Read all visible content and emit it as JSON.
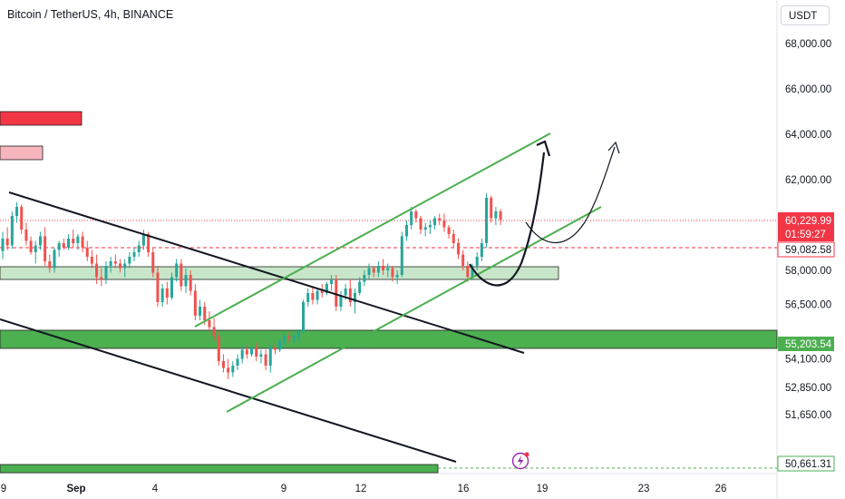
{
  "chart_data": {
    "type": "candlestick",
    "title": "Bitcoin / TetherUS, 4h, BINANCE",
    "currency": "USDT",
    "y_ticks": [
      68000,
      66000,
      64000,
      62000,
      58000,
      56500,
      54100,
      52850,
      51650
    ],
    "y_tick_labels": [
      "68,000.00",
      "66,000.00",
      "64,000.00",
      "62,000.00",
      "58,000.00",
      "56,500.00",
      "54,100.00",
      "52,850.00",
      "51,650.00"
    ],
    "x_tick_labels": [
      "9",
      "Sep",
      "4",
      "9",
      "12",
      "16",
      "19",
      "23",
      "26"
    ],
    "price_labels": {
      "current": "60,229.99",
      "countdown": "01:59:27",
      "level_red": "59,082.58",
      "level_green_top": "55,203.54",
      "level_green_bottom": "50,661.31"
    },
    "zones": [
      {
        "name": "red-zone-top",
        "color": "#f23645"
      },
      {
        "name": "pink-zone",
        "color": "#f7b6bd"
      },
      {
        "name": "light-green-zone",
        "color": "#c8e6c9"
      },
      {
        "name": "green-support-zone",
        "color": "#4caf50"
      },
      {
        "name": "green-bottom-zone",
        "color": "#4caf50"
      }
    ],
    "colors": {
      "up": "#26a69a",
      "down": "#ef5350",
      "channel": "#4caf50",
      "trendline": "#000000",
      "badge_red": "#f23645",
      "badge_green": "#4caf50"
    },
    "candles": [
      [
        58850,
        59700,
        58500,
        59400
      ],
      [
        59400,
        59900,
        58900,
        59100
      ],
      [
        59100,
        60600,
        58950,
        60400
      ],
      [
        60400,
        61000,
        60100,
        60800
      ],
      [
        60800,
        60900,
        59600,
        59800
      ],
      [
        59800,
        60100,
        59100,
        59300
      ],
      [
        59300,
        59500,
        58700,
        58800
      ],
      [
        58800,
        59300,
        58300,
        59100
      ],
      [
        59100,
        59700,
        58900,
        59500
      ],
      [
        59500,
        59900,
        58200,
        58400
      ],
      [
        58400,
        58700,
        57900,
        58100
      ],
      [
        58100,
        59000,
        57900,
        58900
      ],
      [
        58900,
        59300,
        58600,
        59200
      ],
      [
        59200,
        59400,
        58900,
        59000
      ],
      [
        59000,
        59600,
        58900,
        59400
      ],
      [
        59400,
        59800,
        59000,
        59200
      ],
      [
        59200,
        59600,
        58900,
        59500
      ],
      [
        59500,
        59700,
        58800,
        59000
      ],
      [
        59000,
        59300,
        58400,
        58600
      ],
      [
        58600,
        58900,
        58100,
        58300
      ],
      [
        58300,
        58700,
        57400,
        57700
      ],
      [
        57700,
        58100,
        57300,
        57600
      ],
      [
        57600,
        58400,
        57400,
        58200
      ],
      [
        58200,
        58600,
        57900,
        58400
      ],
      [
        58400,
        58700,
        58100,
        58300
      ],
      [
        58300,
        58500,
        57900,
        58100
      ],
      [
        58100,
        58500,
        57700,
        58300
      ],
      [
        58300,
        58800,
        58100,
        58600
      ],
      [
        58600,
        59000,
        58400,
        58800
      ],
      [
        58800,
        59300,
        58600,
        59100
      ],
      [
        59100,
        59800,
        58900,
        59600
      ],
      [
        59600,
        59700,
        58600,
        58800
      ],
      [
        58800,
        59000,
        57700,
        57900
      ],
      [
        57900,
        58200,
        56400,
        56600
      ],
      [
        56600,
        57400,
        56400,
        57200
      ],
      [
        57200,
        57500,
        56500,
        56800
      ],
      [
        56800,
        57900,
        56700,
        57700
      ],
      [
        57700,
        58500,
        57500,
        58300
      ],
      [
        58300,
        58500,
        57100,
        57300
      ],
      [
        57300,
        58100,
        57000,
        57800
      ],
      [
        57800,
        58000,
        56900,
        57100
      ],
      [
        57100,
        57400,
        55800,
        56000
      ],
      [
        56000,
        56700,
        55800,
        56400
      ],
      [
        56400,
        56600,
        55600,
        55800
      ],
      [
        55800,
        56200,
        55300,
        55500
      ],
      [
        55500,
        55900,
        54900,
        55100
      ],
      [
        55100,
        55300,
        53800,
        54000
      ],
      [
        54000,
        54300,
        53500,
        53700
      ],
      [
        53700,
        54100,
        53200,
        53500
      ],
      [
        53500,
        54000,
        53300,
        53800
      ],
      [
        53800,
        54300,
        53600,
        54100
      ],
      [
        54100,
        54700,
        53900,
        54500
      ],
      [
        54500,
        54700,
        54100,
        54300
      ],
      [
        54300,
        54800,
        54200,
        54600
      ],
      [
        54600,
        54800,
        54000,
        54200
      ],
      [
        54200,
        54500,
        53900,
        54300
      ],
      [
        54300,
        54500,
        53600,
        53800
      ],
      [
        53800,
        54700,
        53500,
        54600
      ],
      [
        54600,
        54800,
        54300,
        54500
      ],
      [
        54500,
        55000,
        54400,
        54900
      ],
      [
        54900,
        55200,
        54700,
        55100
      ],
      [
        55100,
        55300,
        54800,
        55000
      ],
      [
        55000,
        55200,
        54800,
        55100
      ],
      [
        55100,
        55400,
        54900,
        55300
      ],
      [
        55300,
        56700,
        55200,
        56600
      ],
      [
        56600,
        57200,
        56400,
        57000
      ],
      [
        57000,
        57300,
        56500,
        56700
      ],
      [
        56700,
        57200,
        56500,
        57100
      ],
      [
        57100,
        57400,
        56800,
        57000
      ],
      [
        57000,
        57500,
        56900,
        57400
      ],
      [
        57400,
        57800,
        57100,
        57600
      ],
      [
        57600,
        57800,
        56200,
        56400
      ],
      [
        56400,
        57100,
        56200,
        56900
      ],
      [
        56900,
        57400,
        56700,
        57200
      ],
      [
        57200,
        57600,
        56400,
        56600
      ],
      [
        56600,
        57200,
        56100,
        57000
      ],
      [
        57000,
        57700,
        56900,
        57500
      ],
      [
        57500,
        58000,
        57300,
        57800
      ],
      [
        57800,
        58300,
        57600,
        58100
      ],
      [
        58100,
        58200,
        57700,
        57900
      ],
      [
        57900,
        58400,
        57700,
        58200
      ],
      [
        58200,
        58500,
        57800,
        58000
      ],
      [
        58000,
        58300,
        57700,
        58100
      ],
      [
        58100,
        58200,
        57500,
        57700
      ],
      [
        57700,
        58000,
        57400,
        57800
      ],
      [
        57800,
        59700,
        57700,
        59500
      ],
      [
        59500,
        60200,
        59300,
        60000
      ],
      [
        60000,
        60800,
        59800,
        60600
      ],
      [
        60600,
        60700,
        60100,
        60300
      ],
      [
        60300,
        60400,
        59600,
        59800
      ],
      [
        59800,
        60100,
        59500,
        59900
      ],
      [
        59900,
        60200,
        59600,
        60000
      ],
      [
        60000,
        60400,
        59800,
        60300
      ],
      [
        60300,
        60500,
        60000,
        60200
      ],
      [
        60200,
        60500,
        59700,
        59900
      ],
      [
        59900,
        60000,
        59400,
        59600
      ],
      [
        59600,
        59800,
        59000,
        59200
      ],
      [
        59200,
        59400,
        58500,
        58700
      ],
      [
        58700,
        58900,
        58000,
        58200
      ],
      [
        58200,
        58400,
        57500,
        57700
      ],
      [
        57700,
        58300,
        57600,
        58200
      ],
      [
        58200,
        58800,
        58000,
        58600
      ],
      [
        58600,
        59400,
        58400,
        59200
      ],
      [
        59200,
        61400,
        59000,
        61200
      ],
      [
        61200,
        61300,
        60100,
        60300
      ],
      [
        60300,
        60800,
        60000,
        60600
      ],
      [
        60600,
        60700,
        60000,
        60230
      ]
    ]
  }
}
